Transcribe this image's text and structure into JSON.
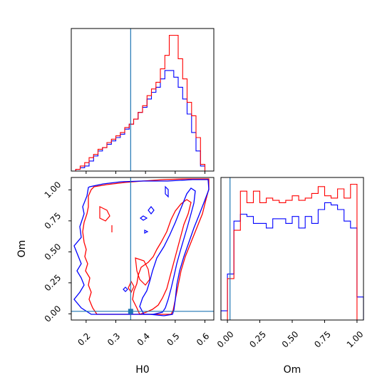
{
  "chart_data": [
    {
      "type": "histogram",
      "panel": "H0 marginal",
      "x_range": [
        0.15,
        0.63
      ],
      "y_axis_ticks": "none",
      "truth_line": 0.35,
      "truth_color": "#1f77b4",
      "bin_edges": [
        0.15,
        0.165,
        0.18,
        0.195,
        0.21,
        0.225,
        0.24,
        0.255,
        0.27,
        0.285,
        0.3,
        0.315,
        0.33,
        0.345,
        0.36,
        0.375,
        0.39,
        0.405,
        0.42,
        0.435,
        0.45,
        0.465,
        0.48,
        0.495,
        0.51,
        0.525,
        0.54,
        0.555,
        0.57,
        0.585,
        0.6,
        0.615,
        0.63
      ],
      "series": [
        {
          "color": "#0000ff",
          "counts": [
            0,
            1,
            2,
            3,
            6,
            9,
            12,
            14,
            16,
            18,
            20,
            22,
            25,
            28,
            31,
            35,
            38,
            43,
            47,
            50,
            55,
            60,
            60,
            56,
            50,
            43,
            34,
            23,
            12,
            3,
            0,
            0
          ]
        },
        {
          "color": "#ff0000",
          "counts": [
            0,
            1,
            3,
            5,
            8,
            10,
            13,
            14,
            17,
            19,
            21,
            23,
            26,
            28,
            31,
            35,
            39,
            45,
            49,
            53,
            61,
            69,
            81,
            81,
            67,
            55,
            41,
            33,
            20,
            4,
            0,
            0
          ]
        }
      ]
    },
    {
      "type": "histogram",
      "panel": "Om marginal",
      "x_range": [
        -0.05,
        1.05
      ],
      "y_axis_ticks": "none",
      "truth_line": 0.02,
      "truth_color": "#1f77b4",
      "bin_edges": [
        -0.05,
        0.0,
        0.05,
        0.1,
        0.15,
        0.2,
        0.25,
        0.3,
        0.35,
        0.4,
        0.45,
        0.5,
        0.55,
        0.6,
        0.65,
        0.7,
        0.75,
        0.8,
        0.85,
        0.9,
        0.95,
        1.0,
        1.05
      ],
      "series": [
        {
          "color": "#0000ff",
          "counts": [
            4,
            20,
            43,
            46,
            45,
            42,
            42,
            40,
            44,
            44,
            42,
            45,
            40,
            45,
            42,
            48,
            51,
            50,
            48,
            43,
            40,
            10
          ]
        },
        {
          "color": "#ff0000",
          "counts": [
            0,
            18,
            39,
            56,
            51,
            56,
            51,
            53,
            52,
            51,
            52,
            54,
            52,
            53,
            55,
            58,
            54,
            53,
            57,
            53,
            59,
            0
          ]
        }
      ]
    },
    {
      "type": "contour",
      "panel": "Om vs H0",
      "x_range": [
        0.15,
        0.63
      ],
      "y_range": [
        -0.05,
        1.1
      ],
      "truth": {
        "H0": 0.35,
        "Om": 0.02
      },
      "truth_color": "#1f77b4",
      "series": [
        {
          "color": "#0000ff",
          "note": "two contour levels"
        },
        {
          "color": "#ff0000",
          "note": "two contour levels"
        }
      ]
    }
  ],
  "axes": {
    "h0_ticks": [
      "0.2",
      "0.3",
      "0.4",
      "0.5",
      "0.6"
    ],
    "h0_tick_values": [
      0.2,
      0.3,
      0.4,
      0.5,
      0.6
    ],
    "om_ticks": [
      "0.00",
      "0.25",
      "0.50",
      "0.75",
      "1.00"
    ],
    "om_tick_values": [
      0.0,
      0.25,
      0.5,
      0.75,
      1.0
    ],
    "xlabel_h0": "H0",
    "xlabel_om": "Om",
    "ylabel_om": "Om"
  }
}
